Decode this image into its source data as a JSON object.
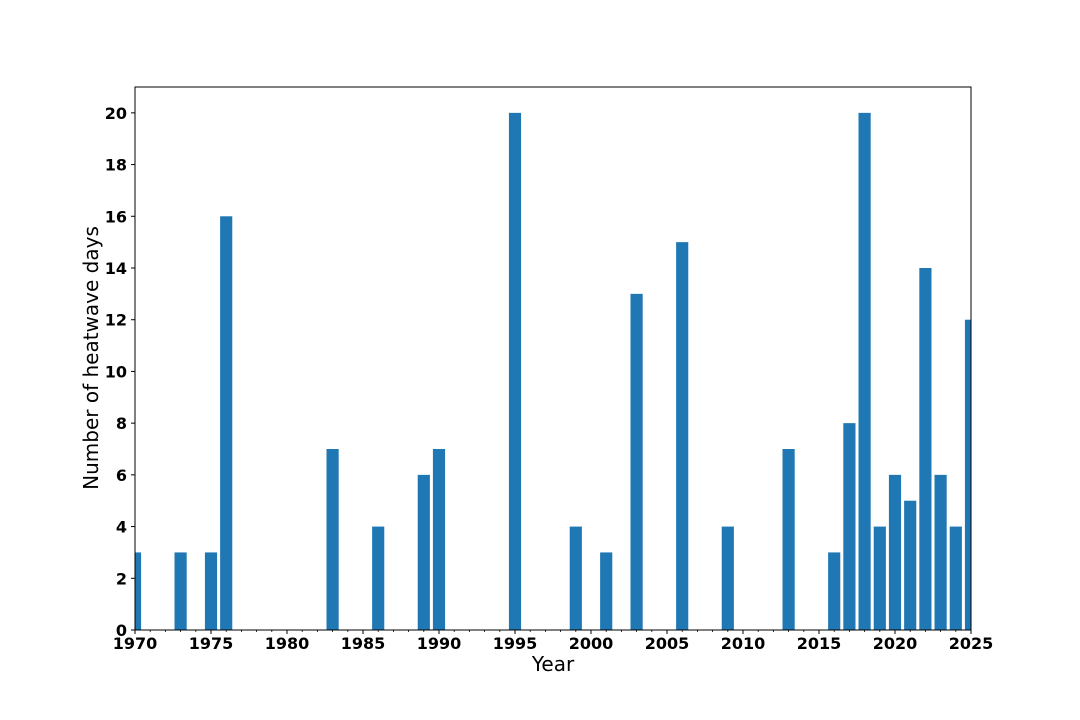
{
  "chart_data": {
    "type": "bar",
    "title": "",
    "xlabel": "Year",
    "ylabel": "Number of heatwave days",
    "xlim": [
      1970,
      2025
    ],
    "ylim": [
      0,
      21
    ],
    "bar_color": "#1f77b4",
    "x": [
      1970,
      1973,
      1975,
      1976,
      1983,
      1986,
      1989,
      1990,
      1995,
      1999,
      2001,
      2003,
      2006,
      2009,
      2013,
      2016,
      2017,
      2018,
      2019,
      2020,
      2021,
      2022,
      2023,
      2024,
      2025
    ],
    "values": [
      3,
      3,
      3,
      16,
      7,
      4,
      6,
      7,
      20,
      4,
      3,
      13,
      15,
      4,
      7,
      3,
      8,
      20,
      4,
      6,
      5,
      14,
      6,
      4,
      12
    ],
    "x_ticks": [
      1970,
      1975,
      1980,
      1985,
      1990,
      1995,
      2000,
      2005,
      2010,
      2015,
      2020,
      2025
    ],
    "y_ticks": [
      0,
      2,
      4,
      6,
      8,
      10,
      12,
      14,
      16,
      18,
      20
    ],
    "grid": false,
    "legend": "none"
  }
}
